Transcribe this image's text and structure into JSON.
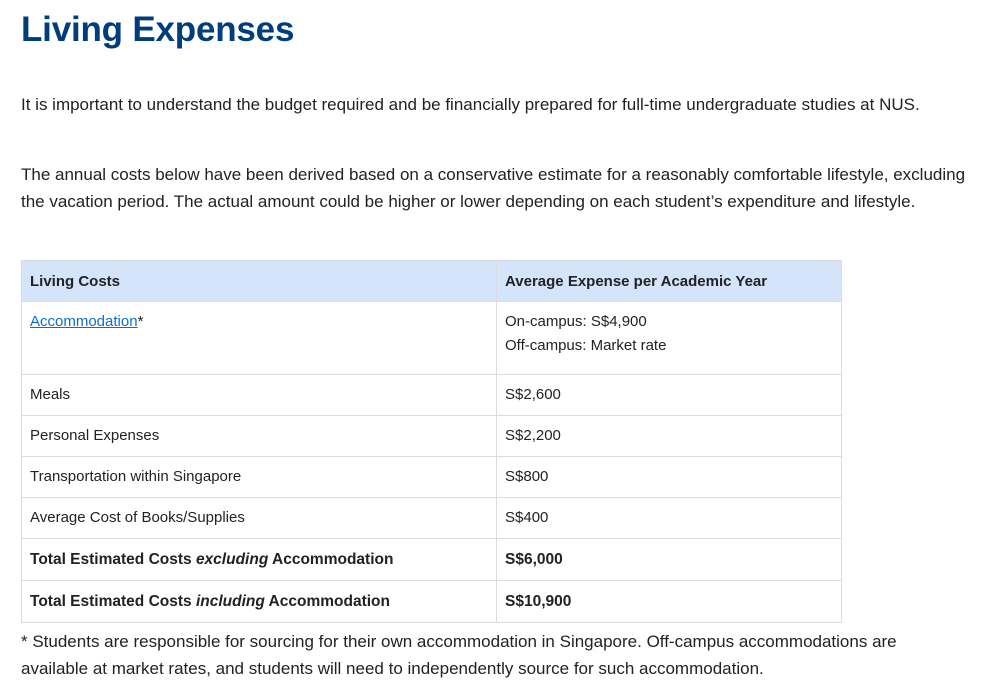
{
  "page": {
    "title": "Living Expenses",
    "intro1": "It is important to understand the budget required and be financially prepared for full-time undergraduate studies at NUS.",
    "intro2": "The annual costs below have been derived based on a conservative estimate for a reasonably comfortable lifestyle, excluding the vacation period. The actual amount could be higher or lower depending on each student’s expenditure and lifestyle.",
    "footnote": "* Students are responsible for sourcing for their own accommodation in Singapore. Off-campus accommodations are available at market rates, and students will need to independently source for such accommodation."
  },
  "table": {
    "headers": [
      "Living Costs",
      "Average Expense per Academic Year"
    ],
    "accommodation": {
      "link_label": "Accommodation",
      "marker": "*",
      "values": [
        "On-campus: S$4,900",
        "Off-campus: Market rate"
      ]
    },
    "rows": [
      {
        "label": "Meals",
        "value": "S$2,600"
      },
      {
        "label": "Personal Expenses",
        "value": "S$2,200"
      },
      {
        "label": "Transportation within Singapore",
        "value": "S$800"
      },
      {
        "label": "Average Cost of Books/Supplies",
        "value": "S$400"
      }
    ],
    "totals": [
      {
        "prefix": "Total Estimated Costs ",
        "emph": "excluding",
        "suffix": " Accommodation",
        "value": "S$6,000"
      },
      {
        "prefix": "Total Estimated Costs ",
        "emph": "including",
        "suffix": " Accommodation",
        "value": "S$10,900"
      }
    ]
  }
}
